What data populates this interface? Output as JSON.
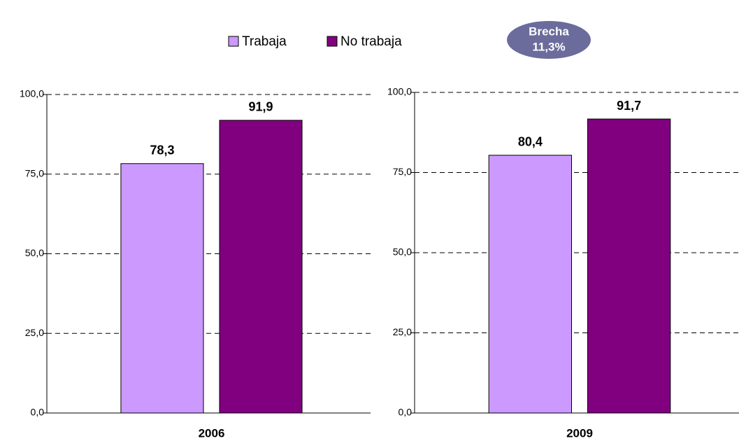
{
  "chart_data": [
    {
      "type": "bar",
      "categories": [
        "2006"
      ],
      "series": [
        {
          "name": "Trabaja",
          "color": "#cc99ff",
          "values": [
            78.3
          ],
          "value_labels": [
            "78,3"
          ]
        },
        {
          "name": "No trabaja",
          "color": "#800080",
          "values": [
            91.9
          ],
          "value_labels": [
            "91,9"
          ]
        }
      ],
      "ylim": [
        0,
        100
      ],
      "yticks": [
        {
          "value": 0,
          "label": "0,0"
        },
        {
          "value": 25,
          "label": "25,0"
        },
        {
          "value": 50,
          "label": "50,0"
        },
        {
          "value": 75,
          "label": "75,0"
        },
        {
          "value": 100,
          "label": "100,0"
        }
      ],
      "grid": true
    },
    {
      "type": "bar",
      "categories": [
        "2009"
      ],
      "series": [
        {
          "name": "Trabaja",
          "color": "#cc99ff",
          "values": [
            80.4
          ],
          "value_labels": [
            "80,4"
          ]
        },
        {
          "name": "No trabaja",
          "color": "#800080",
          "values": [
            91.7
          ],
          "value_labels": [
            "91,7"
          ]
        }
      ],
      "ylim": [
        0,
        100
      ],
      "yticks": [
        {
          "value": 0,
          "label": "0,0"
        },
        {
          "value": 25,
          "label": "25,0"
        },
        {
          "value": 50,
          "label": "50,0"
        },
        {
          "value": 75,
          "label": "75,0"
        },
        {
          "value": 100,
          "label": "100,0"
        }
      ],
      "grid": true,
      "annotations": [
        "Brecha",
        "11,3%"
      ]
    }
  ]
}
